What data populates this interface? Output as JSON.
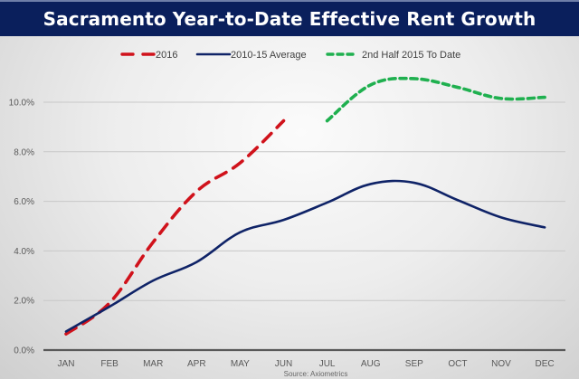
{
  "chart_data": {
    "type": "line",
    "title": "Sacramento Year-to-Date Effective Rent Growth",
    "xlabel": "",
    "ylabel": "",
    "categories": [
      "JAN",
      "FEB",
      "MAR",
      "APR",
      "MAY",
      "JUN",
      "JUL",
      "AUG",
      "SEP",
      "OCT",
      "NOV",
      "DEC"
    ],
    "ylim": [
      0,
      10.0
    ],
    "yticks": [
      0,
      2,
      4,
      6,
      8,
      10
    ],
    "ytick_labels": [
      "0.0%",
      "2.0%",
      "4.0%",
      "6.0%",
      "8.0%",
      "10.0%"
    ],
    "grid": true,
    "legend_position": "top",
    "series": [
      {
        "name": "2016",
        "color": "#d0121b",
        "style": "dashed",
        "values": [
          0.65,
          1.9,
          4.35,
          6.4,
          7.55,
          9.25,
          null,
          null,
          null,
          null,
          null,
          null
        ]
      },
      {
        "name": "2010-15 Average",
        "color": "#0f2367",
        "style": "solid",
        "values": [
          0.75,
          1.75,
          2.8,
          3.55,
          4.75,
          5.25,
          5.95,
          6.7,
          6.75,
          6.05,
          5.35,
          4.95
        ]
      },
      {
        "name": "2nd Half 2015 To Date",
        "color": "#1fb04f",
        "style": "dotted-dash",
        "values": [
          null,
          null,
          null,
          null,
          null,
          null,
          9.25,
          10.7,
          10.95,
          10.6,
          10.15,
          10.2
        ]
      }
    ],
    "source": "Source: Axiometrics"
  }
}
